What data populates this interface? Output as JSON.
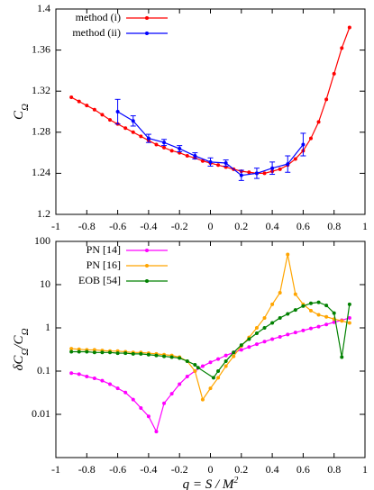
{
  "chart_data": [
    {
      "type": "line",
      "legend": "upper left",
      "xlim": [
        -1,
        1
      ],
      "xticks": [
        -1,
        -0.8,
        -0.6,
        -0.4,
        -0.2,
        0,
        0.2,
        0.4,
        0.6,
        0.8,
        1
      ],
      "ylim": [
        1.2,
        1.4
      ],
      "yticks": [
        1.2,
        1.24,
        1.28,
        1.32,
        1.36,
        1.4
      ],
      "y_label": [
        {
          "text": "C"
        },
        {
          "text": "Ω",
          "sub": true
        }
      ],
      "series": [
        {
          "name": "method (i)",
          "color": "#ff0000",
          "x": [
            -0.9,
            -0.85,
            -0.8,
            -0.75,
            -0.7,
            -0.65,
            -0.6,
            -0.55,
            -0.5,
            -0.45,
            -0.4,
            -0.35,
            -0.3,
            -0.25,
            -0.2,
            -0.15,
            -0.1,
            -0.05,
            0,
            0.05,
            0.1,
            0.15,
            0.2,
            0.25,
            0.3,
            0.35,
            0.4,
            0.45,
            0.5,
            0.55,
            0.6,
            0.65,
            0.7,
            0.75,
            0.8,
            0.85,
            0.9
          ],
          "values": [
            1.314,
            1.31,
            1.306,
            1.302,
            1.297,
            1.292,
            1.288,
            1.284,
            1.28,
            1.276,
            1.272,
            1.268,
            1.265,
            1.262,
            1.26,
            1.257,
            1.255,
            1.252,
            1.25,
            1.248,
            1.246,
            1.244,
            1.242,
            1.241,
            1.24,
            1.24,
            1.242,
            1.244,
            1.248,
            1.254,
            1.262,
            1.274,
            1.29,
            1.312,
            1.337,
            1.362,
            1.382
          ]
        },
        {
          "name": "method (ii)",
          "color": "#0000ff",
          "x": [
            -0.6,
            -0.5,
            -0.4,
            -0.3,
            -0.2,
            -0.1,
            0,
            0.1,
            0.2,
            0.3,
            0.4,
            0.5,
            0.6
          ],
          "values": [
            1.3,
            1.291,
            1.274,
            1.27,
            1.264,
            1.257,
            1.251,
            1.25,
            1.238,
            1.24,
            1.245,
            1.249,
            1.268
          ],
          "errors": [
            0.012,
            0.005,
            0.004,
            0.003,
            0.003,
            0.003,
            0.004,
            0.003,
            0.005,
            0.005,
            0.006,
            0.008,
            0.011
          ]
        }
      ]
    },
    {
      "type": "line",
      "legend": "upper left",
      "log_y": true,
      "xlim": [
        -1,
        1
      ],
      "xticks": [
        -1,
        -0.8,
        -0.6,
        -0.4,
        -0.2,
        0,
        0.2,
        0.4,
        0.6,
        0.8,
        1
      ],
      "ylim": [
        0.001,
        100
      ],
      "yticks": [
        0.01,
        0.1,
        1,
        10,
        100
      ],
      "y_label": [
        {
          "text": "δC"
        },
        {
          "text": "Ω",
          "sub": true
        },
        {
          "text": "/C"
        },
        {
          "text": "Ω",
          "sub": true
        }
      ],
      "x_label": [
        {
          "text": "q = S / M"
        },
        {
          "text": "2",
          "sup": true
        }
      ],
      "series": [
        {
          "name": "PN [14]",
          "color": "#ff00ff",
          "x": [
            -0.9,
            -0.85,
            -0.8,
            -0.75,
            -0.7,
            -0.65,
            -0.6,
            -0.55,
            -0.5,
            -0.45,
            -0.4,
            -0.35,
            -0.3,
            -0.25,
            -0.2,
            -0.15,
            -0.1,
            -0.05,
            0,
            0.05,
            0.1,
            0.15,
            0.2,
            0.25,
            0.3,
            0.35,
            0.4,
            0.45,
            0.5,
            0.55,
            0.6,
            0.65,
            0.7,
            0.75,
            0.8,
            0.85,
            0.9
          ],
          "values": [
            0.09,
            0.085,
            0.075,
            0.068,
            0.06,
            0.05,
            0.04,
            0.032,
            0.022,
            0.014,
            0.009,
            0.004,
            0.018,
            0.03,
            0.05,
            0.075,
            0.1,
            0.13,
            0.16,
            0.19,
            0.23,
            0.27,
            0.31,
            0.36,
            0.42,
            0.48,
            0.55,
            0.62,
            0.7,
            0.78,
            0.87,
            0.97,
            1.07,
            1.2,
            1.35,
            1.5,
            1.7
          ]
        },
        {
          "name": "PN [16]",
          "color": "#ffa500",
          "x": [
            -0.9,
            -0.85,
            -0.8,
            -0.75,
            -0.7,
            -0.65,
            -0.6,
            -0.55,
            -0.5,
            -0.45,
            -0.4,
            -0.35,
            -0.3,
            -0.25,
            -0.2,
            -0.15,
            -0.1,
            -0.05,
            0,
            0.05,
            0.1,
            0.15,
            0.2,
            0.25,
            0.3,
            0.35,
            0.4,
            0.45,
            0.5,
            0.55,
            0.6,
            0.65,
            0.7,
            0.75,
            0.8,
            0.85,
            0.9
          ],
          "values": [
            0.33,
            0.32,
            0.31,
            0.31,
            0.3,
            0.29,
            0.29,
            0.28,
            0.27,
            0.27,
            0.26,
            0.25,
            0.24,
            0.23,
            0.21,
            0.17,
            0.1,
            0.022,
            0.04,
            0.07,
            0.13,
            0.22,
            0.38,
            0.6,
            1.0,
            1.7,
            3.5,
            6.5,
            50,
            6,
            3.5,
            2.5,
            2.0,
            1.8,
            1.6,
            1.45,
            1.3
          ]
        },
        {
          "name": "EOB [54]",
          "color": "#008000",
          "x": [
            -0.9,
            -0.85,
            -0.8,
            -0.75,
            -0.7,
            -0.65,
            -0.6,
            -0.55,
            -0.5,
            -0.45,
            -0.4,
            -0.35,
            -0.3,
            -0.25,
            -0.2,
            -0.15,
            -0.1,
            -0.08,
            0.02,
            0.05,
            0.1,
            0.15,
            0.2,
            0.25,
            0.3,
            0.35,
            0.4,
            0.45,
            0.5,
            0.55,
            0.6,
            0.65,
            0.7,
            0.75,
            0.8,
            0.85,
            0.9
          ],
          "values": [
            0.28,
            0.28,
            0.28,
            0.27,
            0.27,
            0.27,
            0.26,
            0.26,
            0.25,
            0.25,
            0.24,
            0.23,
            0.22,
            0.21,
            0.2,
            0.17,
            0.14,
            0.12,
            0.07,
            0.1,
            0.17,
            0.27,
            0.4,
            0.55,
            0.75,
            1.0,
            1.3,
            1.7,
            2.1,
            2.6,
            3.2,
            3.7,
            3.9,
            3.3,
            2.2,
            0.21,
            3.5
          ]
        }
      ]
    }
  ]
}
